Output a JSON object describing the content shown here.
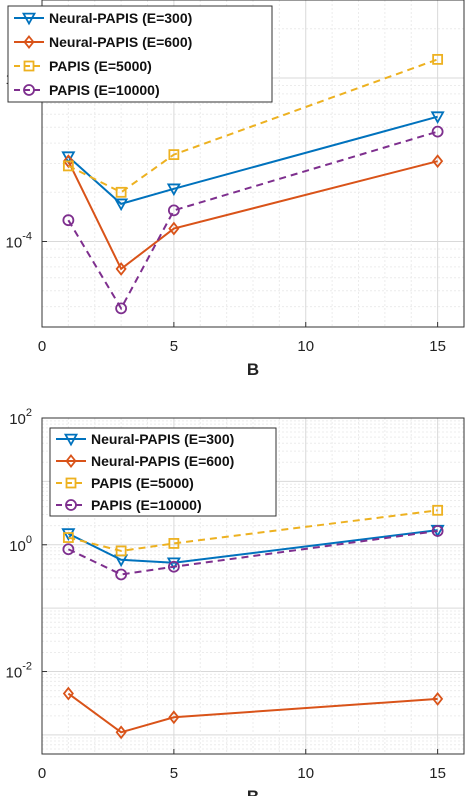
{
  "chart_data": [
    {
      "type": "line",
      "xlabel": "B",
      "ylabel": "",
      "xlim": [
        0,
        16
      ],
      "ylim": [
        3e-05,
        0.003
      ],
      "yscale": "log",
      "xticks": [
        "0",
        "5",
        "10",
        "15"
      ],
      "yticks": [
        {
          "base": "10",
          "exp": "-4",
          "value": 0.0001
        },
        {
          "base": "10",
          "exp": "-3",
          "value": 0.001
        }
      ],
      "grid": true,
      "legend": "top-left",
      "x": [
        1,
        3,
        5,
        15
      ],
      "series": [
        {
          "name": "Neural-PAPIS (E=300)",
          "values": [
            0.00033,
            0.00017,
            0.00021,
            0.00058
          ],
          "color": "#0072BD",
          "marker": "triangle-down",
          "dash": "solid"
        },
        {
          "name": "Neural-PAPIS (E=600)",
          "values": [
            0.00031,
            6.8e-05,
            0.00012,
            0.00031
          ],
          "color": "#D95319",
          "marker": "diamond",
          "dash": "solid"
        },
        {
          "name": "PAPIS (E=5000)",
          "values": [
            0.00029,
            0.0002,
            0.00034,
            0.0013
          ],
          "color": "#EDB120",
          "marker": "square",
          "dash": "dashed"
        },
        {
          "name": "PAPIS (E=10000)",
          "values": [
            0.000135,
            3.9e-05,
            0.000155,
            0.00047
          ],
          "color": "#7E2F8E",
          "marker": "circle",
          "dash": "dashed"
        }
      ]
    },
    {
      "type": "line",
      "xlabel": "B",
      "ylabel": "",
      "xlim": [
        0,
        16
      ],
      "ylim": [
        0.0005,
        100
      ],
      "yscale": "log",
      "xticks": [
        "0",
        "5",
        "10",
        "15"
      ],
      "yticks": [
        {
          "base": "10",
          "exp": "-2",
          "value": 0.01
        },
        {
          "base": "10",
          "exp": "0",
          "value": 1
        },
        {
          "base": "10",
          "exp": "2",
          "value": 100
        }
      ],
      "grid": true,
      "legend": "top-left",
      "x": [
        1,
        3,
        5,
        15
      ],
      "series": [
        {
          "name": "Neural-PAPIS (E=300)",
          "values": [
            1.5,
            0.58,
            0.52,
            1.7
          ],
          "color": "#0072BD",
          "marker": "triangle-down",
          "dash": "solid"
        },
        {
          "name": "Neural-PAPIS (E=600)",
          "values": [
            0.0045,
            0.0011,
            0.0019,
            0.0037
          ],
          "color": "#D95319",
          "marker": "diamond",
          "dash": "solid"
        },
        {
          "name": "PAPIS (E=5000)",
          "values": [
            1.3,
            0.8,
            1.05,
            3.5
          ],
          "color": "#EDB120",
          "marker": "square",
          "dash": "dashed"
        },
        {
          "name": "PAPIS (E=10000)",
          "values": [
            0.85,
            0.34,
            0.45,
            1.65
          ],
          "color": "#7E2F8E",
          "marker": "circle",
          "dash": "dashed"
        }
      ]
    }
  ]
}
